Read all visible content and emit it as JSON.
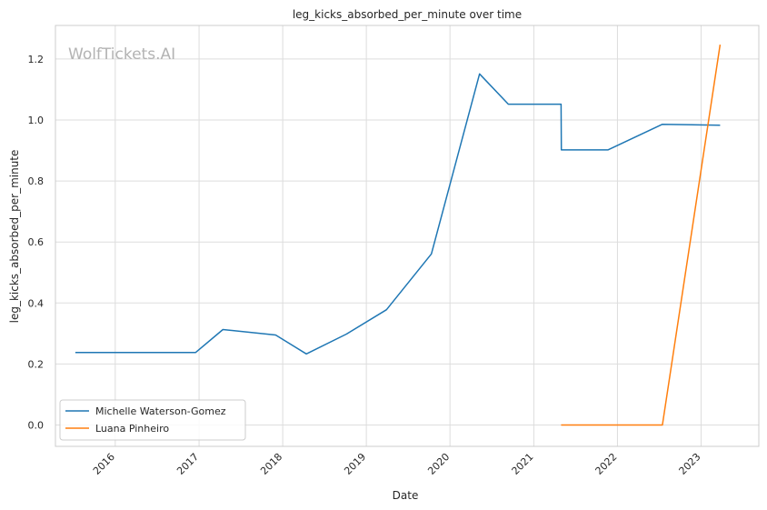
{
  "chart_data": {
    "type": "line",
    "title": "leg_kicks_absorbed_per_minute over time",
    "xlabel": "Date",
    "ylabel": "leg_kicks_absorbed_per_minute",
    "watermark": "WolfTickets.AI",
    "x_ticks": [
      "2016",
      "2017",
      "2018",
      "2019",
      "2020",
      "2021",
      "2022",
      "2023"
    ],
    "y_ticks": [
      "0.0",
      "0.2",
      "0.4",
      "0.6",
      "0.8",
      "1.0",
      "1.2"
    ],
    "xlim": [
      "2015-04-15",
      "2023-09-10"
    ],
    "ylim": [
      -0.07,
      1.31
    ],
    "grid": true,
    "legend_position": "lower-left",
    "series": [
      {
        "name": "Michelle Waterson-Gomez",
        "color": "#1f77b4",
        "points": [
          [
            "2015-07-11",
            0.238
          ],
          [
            "2016-12-17",
            0.238
          ],
          [
            "2017-04-15",
            0.313
          ],
          [
            "2017-12-01",
            0.295
          ],
          [
            "2018-04-14",
            0.233
          ],
          [
            "2018-10-06",
            0.298
          ],
          [
            "2019-03-30",
            0.378
          ],
          [
            "2019-10-12",
            0.561
          ],
          [
            "2020-05-09",
            1.151
          ],
          [
            "2020-09-12",
            1.052
          ],
          [
            "2021-04-30",
            1.052
          ],
          [
            "2021-05-01",
            0.902
          ],
          [
            "2021-11-20",
            0.902
          ],
          [
            "2022-07-16",
            0.986
          ],
          [
            "2023-03-25",
            0.983
          ]
        ]
      },
      {
        "name": "Luana Pinheiro",
        "color": "#ff7f0e",
        "points": [
          [
            "2021-04-30",
            0.0
          ],
          [
            "2022-07-16",
            0.0
          ],
          [
            "2023-03-25",
            1.247
          ]
        ]
      }
    ]
  }
}
